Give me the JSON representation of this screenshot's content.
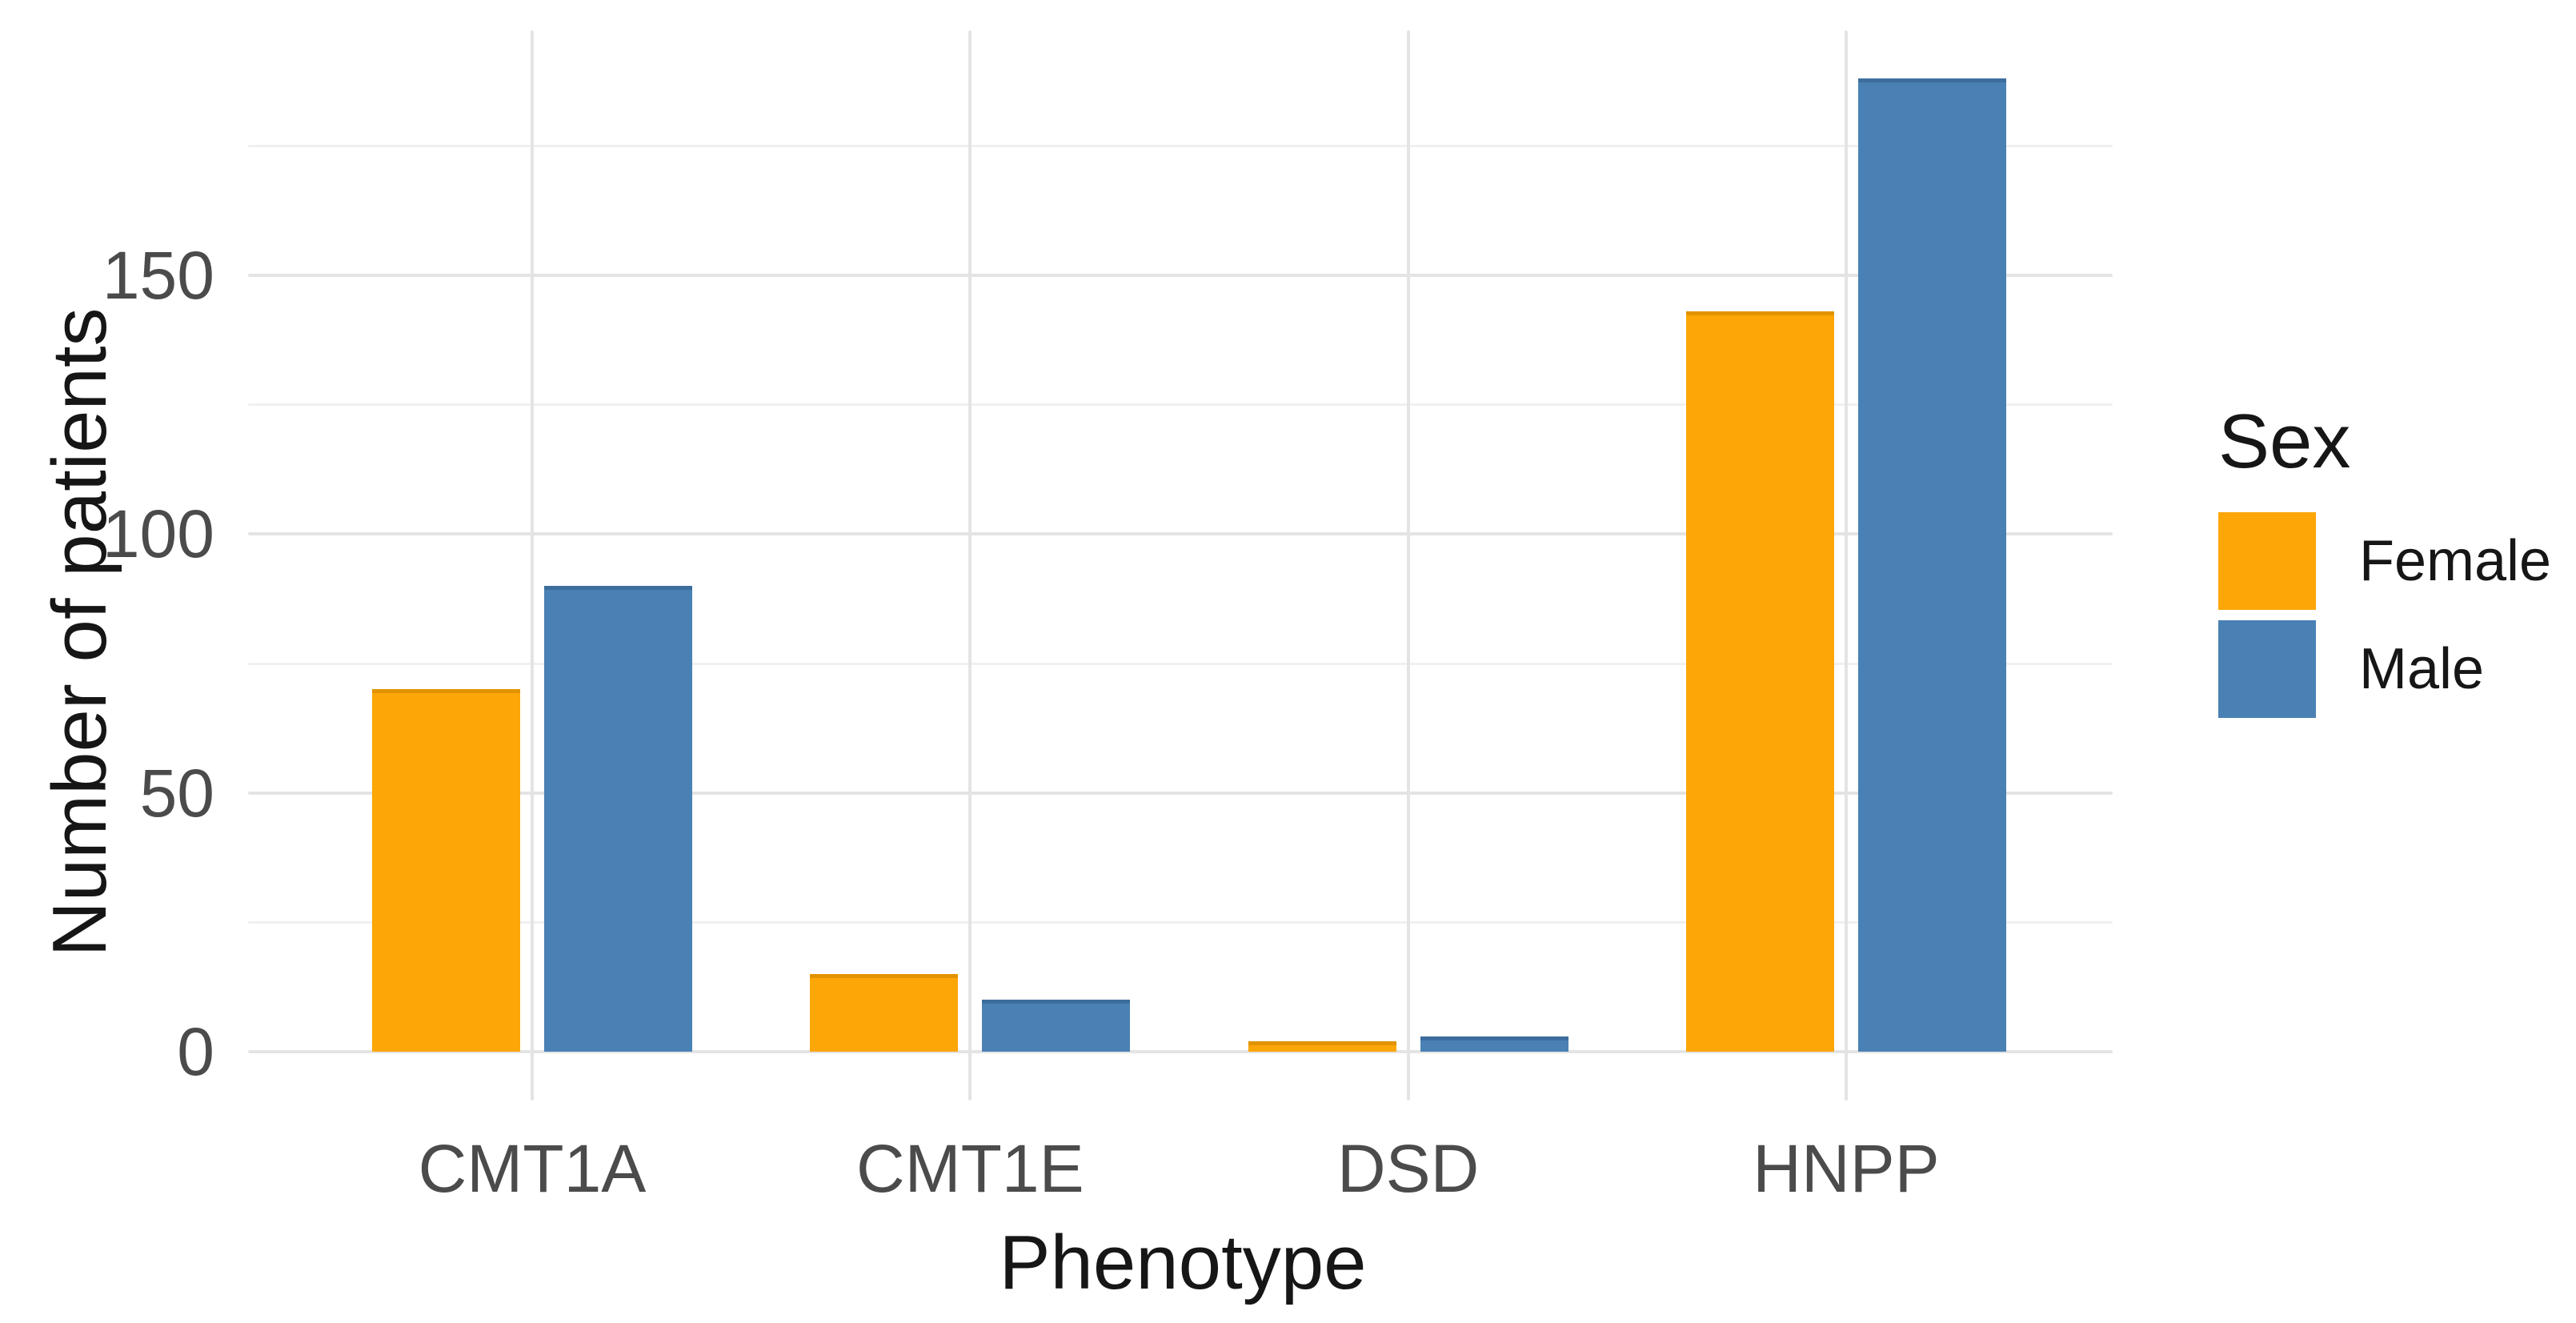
{
  "chart_data": {
    "type": "bar",
    "title": "",
    "xlabel": "Phenotype",
    "ylabel": "Number of patients",
    "categories": [
      "CMT1A",
      "CMT1E",
      "DSD",
      "HNPP"
    ],
    "series": [
      {
        "name": "Female",
        "color": "#FCA608",
        "edge_color": "#E29300",
        "values": [
          70,
          15,
          2,
          143
        ]
      },
      {
        "name": "Male",
        "color": "#4A81B4",
        "edge_color": "#3C6D9D",
        "values": [
          90,
          10,
          3,
          188
        ]
      }
    ],
    "y_ticks": [
      0,
      50,
      100,
      150
    ],
    "y_minor_ticks": [
      25,
      75,
      125,
      175
    ],
    "ylim": [
      0,
      197
    ],
    "grid": "on",
    "legend_title": "Sex",
    "legend_position": "right",
    "background_color": "#ffffff",
    "grid_major_color": "#e4e4e4",
    "grid_minor_color": "#f0f0f0",
    "tick_label_color": "#4b4b4b",
    "axis_title_color": "#161616",
    "legend_text_color": "#161616"
  }
}
